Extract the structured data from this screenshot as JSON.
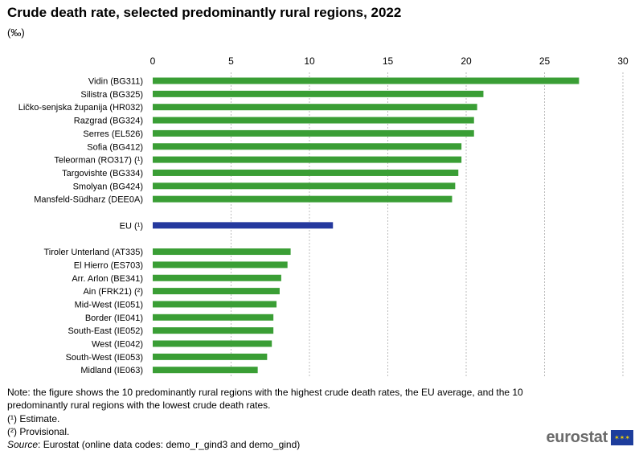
{
  "title": "Crude death rate, selected predominantly rural regions, 2022",
  "subtitle": "(‰)",
  "colors": {
    "bar": "#3a9e35",
    "highlight": "#25399e",
    "grid": "#bdbdbd"
  },
  "chart_data": {
    "type": "bar",
    "orientation": "horizontal",
    "xlim": [
      0,
      30
    ],
    "x_ticks": [
      "0",
      "5",
      "10",
      "15",
      "20",
      "25",
      "30"
    ],
    "grid": true,
    "groups": [
      {
        "bars": [
          {
            "label": "Vidin (BG311)",
            "value": 27.2
          },
          {
            "label": "Silistra (BG325)",
            "value": 21.1
          },
          {
            "label": "Ličko-senjska županija (HR032)",
            "value": 20.7
          },
          {
            "label": "Razgrad (BG324)",
            "value": 20.5
          },
          {
            "label": "Serres (EL526)",
            "value": 20.5
          },
          {
            "label": "Sofia (BG412)",
            "value": 19.7
          },
          {
            "label": "Teleorman (RO317) (¹)",
            "value": 19.7
          },
          {
            "label": "Targovishte (BG334)",
            "value": 19.5
          },
          {
            "label": "Smolyan (BG424)",
            "value": 19.3
          },
          {
            "label": "Mansfeld-Südharz (DEE0A)",
            "value": 19.1
          }
        ]
      },
      {
        "bars": [
          {
            "label": "EU (¹)",
            "value": 11.5,
            "highlight": true
          }
        ]
      },
      {
        "bars": [
          {
            "label": "Tiroler Unterland (AT335)",
            "value": 8.8
          },
          {
            "label": "El Hierro (ES703)",
            "value": 8.6
          },
          {
            "label": "Arr. Arlon (BE341)",
            "value": 8.2
          },
          {
            "label": "Ain (FRK21) (²)",
            "value": 8.1
          },
          {
            "label": "Mid-West (IE051)",
            "value": 7.9
          },
          {
            "label": "Border (IE041)",
            "value": 7.7
          },
          {
            "label": "South-East (IE052)",
            "value": 7.7
          },
          {
            "label": "West (IE042)",
            "value": 7.6
          },
          {
            "label": "South-West (IE053)",
            "value": 7.3
          },
          {
            "label": "Midland (IE063)",
            "value": 6.7
          }
        ]
      }
    ]
  },
  "notes": {
    "note": "Note: the figure shows the 10 predominantly rural regions with the highest crude death rates, the EU average, and the 10 predominantly rural regions with the lowest crude death rates.",
    "footnote1": "(¹) Estimate.",
    "footnote2": "(²) Provisional.",
    "source_label": "Source",
    "source_text": ": Eurostat (online data codes: demo_r_gind3 and demo_gind)"
  },
  "logo": {
    "text": "eurostat",
    "icon": "eu-flag-icon"
  }
}
